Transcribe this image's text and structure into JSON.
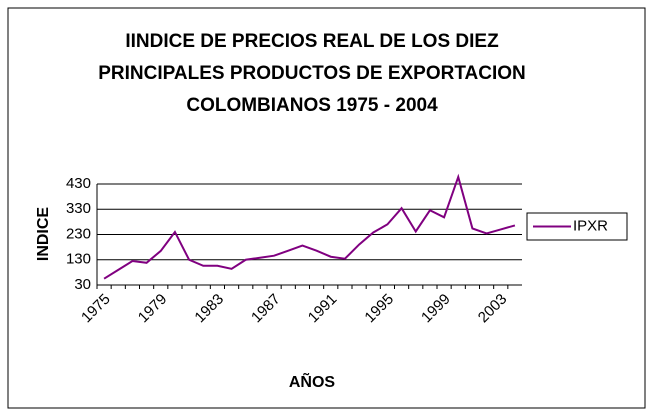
{
  "chart_data": {
    "type": "line",
    "title": [
      "IINDICE DE PRECIOS REAL DE LOS DIEZ",
      "PRINCIPALES PRODUCTOS DE EXPORTACION",
      "COLOMBIANOS 1975 - 2004"
    ],
    "x_label": "AÑOS",
    "y_label": "INDICE",
    "categories": [
      "1975",
      null,
      null,
      null,
      "1979",
      null,
      null,
      null,
      "1983",
      null,
      null,
      null,
      "1987",
      null,
      null,
      null,
      "1991",
      null,
      null,
      null,
      "1995",
      null,
      null,
      null,
      "1999",
      null,
      null,
      null,
      "2003",
      null
    ],
    "series": [
      {
        "name": "IPXR",
        "color": "#800080",
        "values": [
          55,
          90,
          125,
          118,
          165,
          240,
          130,
          106,
          106,
          94,
          130,
          138,
          146,
          166,
          186,
          166,
          142,
          134,
          190,
          238,
          270,
          334,
          242,
          326,
          298,
          458,
          254,
          234,
          250,
          266
        ]
      }
    ],
    "ylim": [
      30,
      430
    ],
    "yticks": [
      30,
      130,
      230,
      330,
      430
    ],
    "grid": true,
    "legend": "right"
  }
}
